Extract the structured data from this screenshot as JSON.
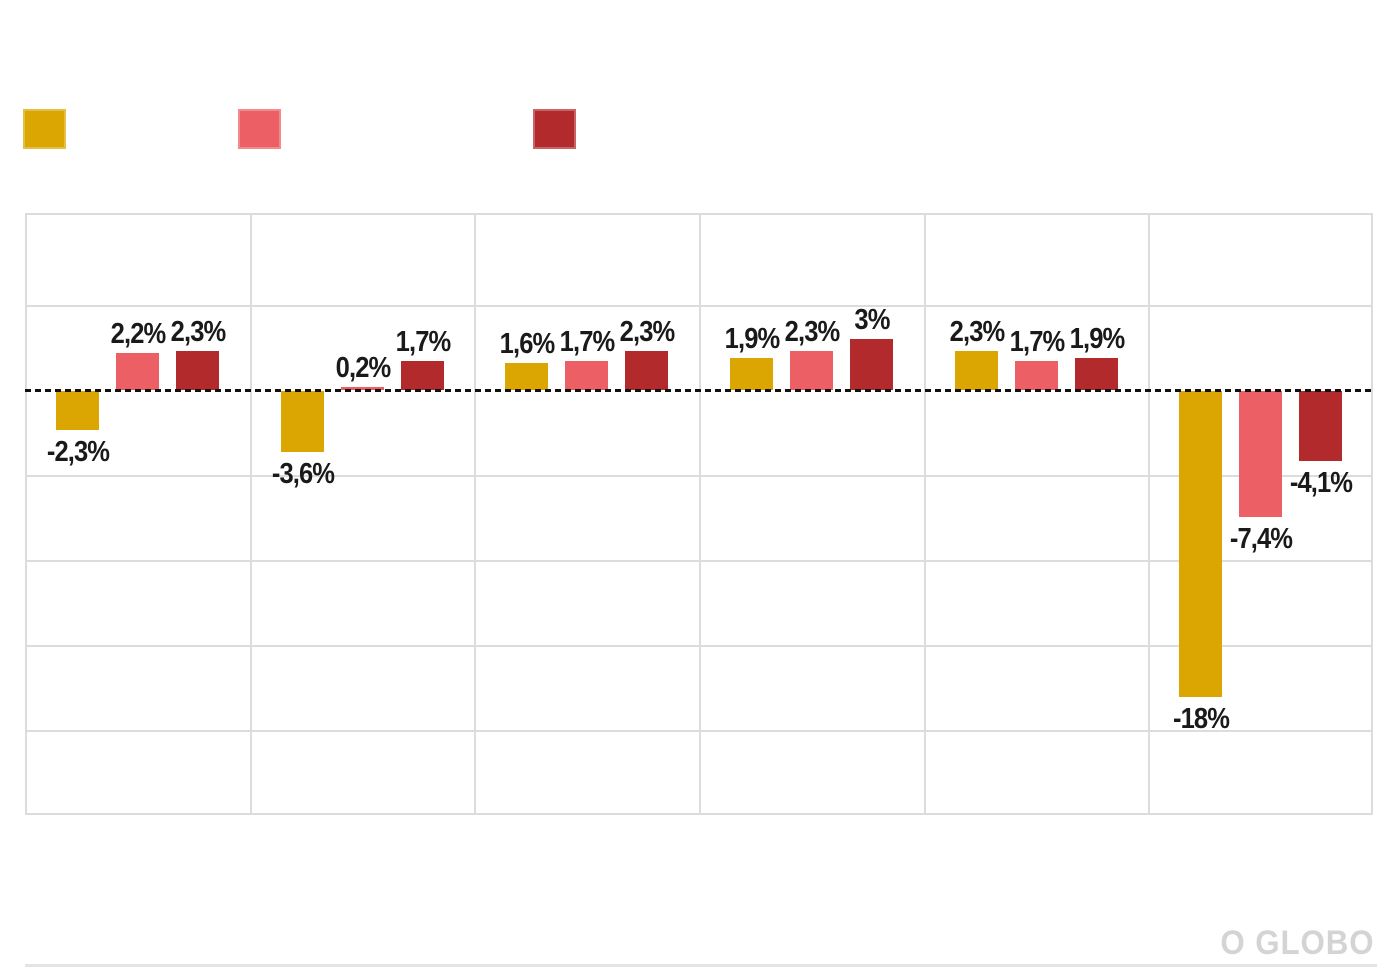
{
  "watermark": "O GLOBO",
  "colors": {
    "series1": "#DBA602",
    "series2": "#EC5F64",
    "series3": "#B22A2B",
    "grid": "#DCDCDC",
    "zero_line": "#111111",
    "label_text": "#1A1A1A",
    "watermark_text": "#D4D4D4",
    "bottom_rule": "#E4E4E4",
    "background": "#FFFFFF"
  },
  "legend": {
    "labels_visible": false,
    "swatches": [
      {
        "name": "series-1-swatch",
        "color": "#DBA602"
      },
      {
        "name": "series-2-swatch",
        "color": "#EC5F64"
      },
      {
        "name": "series-3-swatch",
        "color": "#B22A2B"
      }
    ]
  },
  "chart_data": {
    "type": "bar",
    "group_count": 6,
    "categories": [
      "",
      "",
      "",
      "",
      "",
      ""
    ],
    "category_labels_visible": false,
    "series": [
      {
        "color": "#DBA602",
        "values": [
          -2.3,
          -3.6,
          1.6,
          1.9,
          2.3,
          -18
        ],
        "labels": [
          "-2,3%",
          "-3,6%",
          "1,6%",
          "1,9%",
          "2,3%",
          "-18%"
        ]
      },
      {
        "color": "#EC5F64",
        "values": [
          2.2,
          0.2,
          1.7,
          2.3,
          1.7,
          -7.4
        ],
        "labels": [
          "2,2%",
          "0,2%",
          "1,7%",
          "2,3%",
          "1,7%",
          "-7,4%"
        ]
      },
      {
        "color": "#B22A2B",
        "values": [
          2.3,
          1.7,
          2.3,
          3,
          1.9,
          -4.1
        ],
        "labels": [
          "2,3%",
          "1,7%",
          "2,3%",
          "3%",
          "1,9%",
          "-4,1%"
        ]
      }
    ],
    "y_axis": {
      "unit": "%",
      "gridline_step": 5,
      "range_approx": [
        -25,
        10.4
      ],
      "zero_line_style": "dashed-black",
      "tick_labels_visible": false
    },
    "legend_position": "top-left",
    "grid": true
  }
}
